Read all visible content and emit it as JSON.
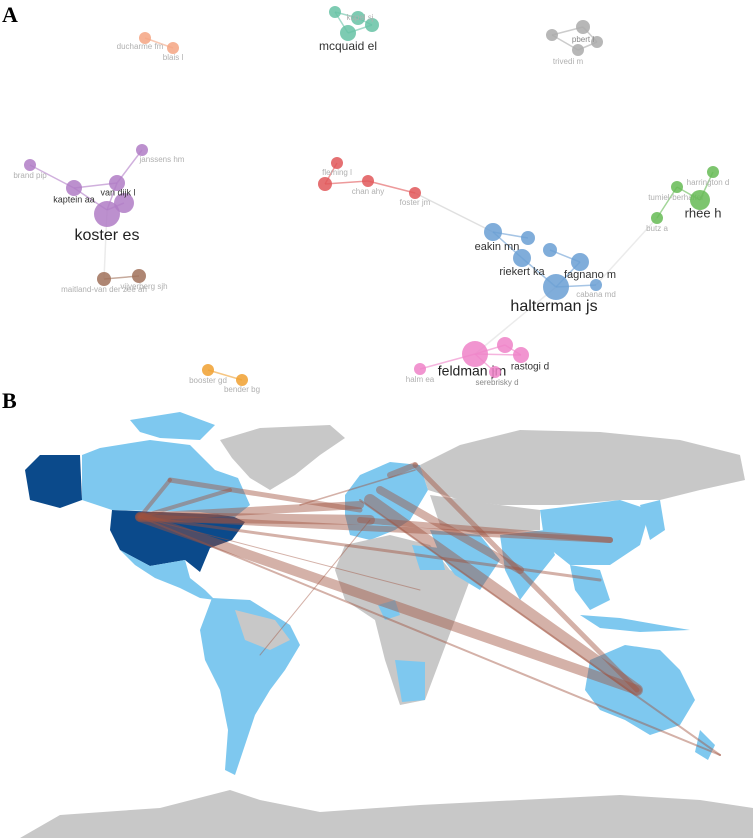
{
  "panels": [
    {
      "label": "A",
      "nodes": [
        {
          "label": "ducharme fm"
        },
        {
          "label": "blais l"
        },
        {
          "label": "kopel sj"
        },
        {
          "label": "mcquaid el"
        },
        {
          "label": "pbert l"
        },
        {
          "label": "trivedi m"
        },
        {
          "label": "janssens hm"
        },
        {
          "label": "brand pip"
        },
        {
          "label": "van dijk l"
        },
        {
          "label": "kaptein aa"
        },
        {
          "label": "koster es"
        },
        {
          "label": "fleming l"
        },
        {
          "label": "chan ahy"
        },
        {
          "label": "foster jm"
        },
        {
          "label": "harrington d"
        },
        {
          "label": "tumiel-berhalter"
        },
        {
          "label": "rhee h"
        },
        {
          "label": "butz a"
        },
        {
          "label": "eakin mn"
        },
        {
          "label": "riekert ka"
        },
        {
          "label": "fagnano m"
        },
        {
          "label": "cabana md"
        },
        {
          "label": "halterman js"
        },
        {
          "label": "maitland-van der zee ah"
        },
        {
          "label": "vijverberg sjh"
        },
        {
          "label": "feldman jm"
        },
        {
          "label": "rastogi d"
        },
        {
          "label": "serebrisky d"
        },
        {
          "label": "halm ea"
        },
        {
          "label": "booster gd"
        },
        {
          "label": "bender bg"
        }
      ]
    },
    {
      "label": "B"
    }
  ]
}
